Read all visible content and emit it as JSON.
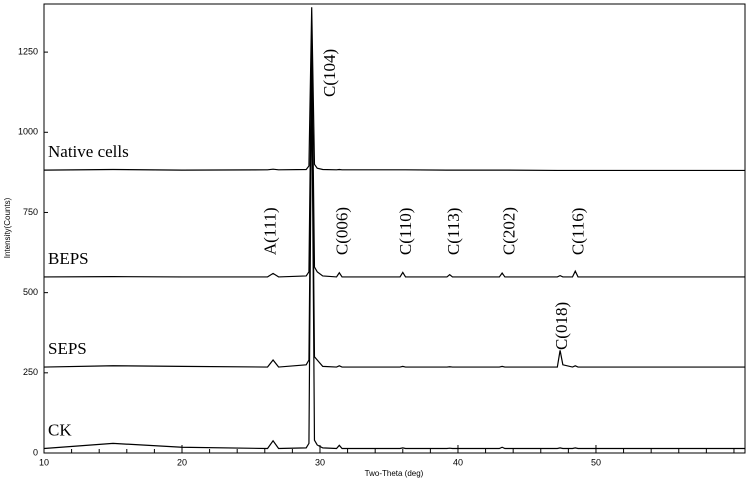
{
  "chart_data": {
    "type": "line",
    "x_label": "Two-Theta (deg)",
    "y_label": "Intensity(Counts)",
    "xlim": [
      10,
      60.8
    ],
    "ylim": [
      0,
      1400
    ],
    "xticks": [
      10,
      20,
      30,
      40,
      50
    ],
    "xminorticks": [
      12,
      14,
      16,
      18,
      22,
      24,
      26,
      28,
      32,
      34,
      36,
      38,
      42,
      44,
      46,
      48,
      52,
      54,
      56,
      58,
      60
    ],
    "yticks": [
      0,
      250,
      500,
      750,
      1000,
      1250
    ],
    "color": "#000000",
    "x": [
      10,
      15,
      20,
      26.2,
      26.6,
      27,
      29,
      29.2,
      29.4,
      29.6,
      29.8,
      30.2,
      31.2,
      31.4,
      31.6,
      35.8,
      36,
      36.2,
      39.2,
      39.4,
      39.6,
      43,
      43.2,
      43.4,
      47.2,
      47.4,
      47.6,
      48.3,
      48.5,
      48.7,
      55,
      60.8
    ],
    "series": [
      {
        "name": "Native cells",
        "values": [
          882,
          884,
          882,
          883,
          885,
          883,
          884,
          895,
          1390,
          900,
          888,
          884,
          883,
          884,
          883,
          883,
          883,
          883,
          882,
          882,
          882,
          882,
          882,
          882,
          881,
          881,
          881,
          881,
          881,
          881,
          881,
          881
        ]
      },
      {
        "name": "BEPS",
        "values": [
          549,
          550,
          549,
          549,
          560,
          549,
          552,
          565,
          1300,
          580,
          565,
          552,
          549,
          562,
          549,
          549,
          563,
          549,
          549,
          556,
          549,
          549,
          561,
          549,
          549,
          553,
          549,
          549,
          567,
          549,
          549,
          549
        ]
      },
      {
        "name": "SEPS",
        "values": [
          268,
          272,
          270,
          268,
          290,
          268,
          275,
          290,
          1200,
          300,
          290,
          270,
          268,
          272,
          268,
          268,
          270,
          268,
          268,
          269,
          268,
          268,
          270,
          268,
          268,
          320,
          275,
          268,
          272,
          268,
          268,
          268
        ]
      },
      {
        "name": "CK",
        "values": [
          14,
          30,
          18,
          14,
          38,
          14,
          16,
          30,
          1200,
          40,
          25,
          16,
          14,
          24,
          14,
          14,
          16,
          14,
          14,
          15,
          14,
          14,
          18,
          14,
          14,
          16,
          14,
          14,
          16,
          14,
          14,
          14
        ]
      }
    ],
    "annotations": [
      {
        "text": "C(104)",
        "x": 30.8,
        "y": 1110
      },
      {
        "text": "A(111)",
        "x": 26.5,
        "y": 617
      },
      {
        "text": "C(006)",
        "x": 31.7,
        "y": 617
      },
      {
        "text": "C(110)",
        "x": 36.3,
        "y": 617
      },
      {
        "text": "C(113)",
        "x": 39.8,
        "y": 617
      },
      {
        "text": "C(202)",
        "x": 43.8,
        "y": 617
      },
      {
        "text": "C(116)",
        "x": 48.8,
        "y": 617
      },
      {
        "text": "C(018)",
        "x": 47.6,
        "y": 321
      }
    ]
  }
}
